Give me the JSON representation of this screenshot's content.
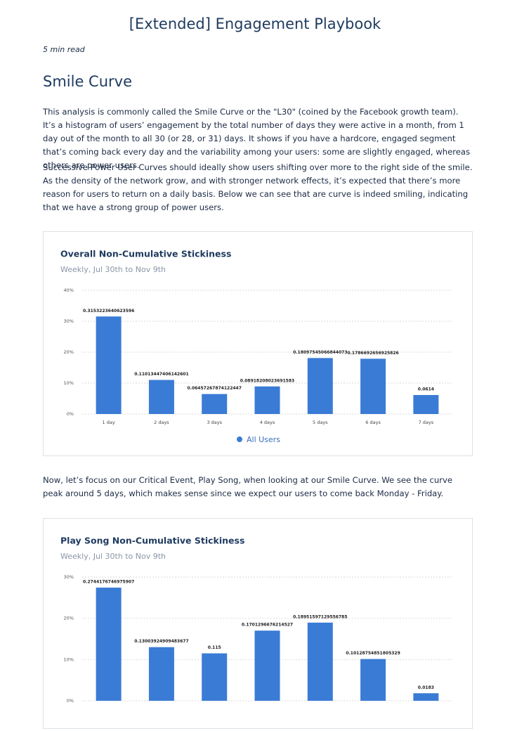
{
  "header": {
    "title": "[Extended] Engagement Playbook",
    "read_time": "5 min read"
  },
  "section": {
    "heading": "Smile Curve",
    "paragraphs": [
      "This analysis is commonly called the Smile Curve or the \"L30\" (coined by the Facebook growth team). It’s a histogram of users’ engagement by the total number of days they were active in a month, from 1 day out of the month to all 30 (or 28, or 31) days. It shows if you have a hardcore, engaged segment that’s coming back every day and the variability among your users: some are slightly engaged, whereas others are power users.",
      "Successive Power User Curves should ideally show users shifting over more to the right side of the smile. As the density of the network grow, and with stronger network effects, it’s expected that there’s more reason for users to return on a daily basis. Below we can see that are curve is indeed smiling, indicating that we have a strong group of power users."
    ],
    "bridge": "Now, let’s focus on our Critical Event, Play Song, when looking at our Smile Curve. We see the curve peak around 5 days, which makes sense since we expect our users to come back Monday - Friday."
  },
  "chart_data": [
    {
      "type": "bar",
      "title": "Overall Non-Cumulative Stickiness",
      "subtitle": "Weekly, Jul 30th to Nov 9th",
      "categories": [
        "1 day",
        "2 days",
        "3 days",
        "4 days",
        "5 days",
        "6 days",
        "7 days"
      ],
      "series": [
        {
          "name": "All Users",
          "color": "#3a7bd5",
          "values": [
            0.3153223640623596,
            0.11013447406142601,
            0.06457267874122447,
            0.08918208023691583,
            0.18097545066844073,
            0.1786692656925826,
            0.0614
          ]
        }
      ],
      "ylim": [
        0,
        0.4
      ],
      "yticks": [
        {
          "value": 0,
          "label": "0%"
        },
        {
          "value": 0.1,
          "label": "10%"
        },
        {
          "value": 0.2,
          "label": "20%"
        },
        {
          "value": 0.3,
          "label": "30%"
        },
        {
          "value": 0.4,
          "label": "40%"
        }
      ],
      "grid": true
    },
    {
      "type": "bar",
      "title": "Play Song Non-Cumulative Stickiness",
      "subtitle": "Weekly, Jul 30th to Nov 9th",
      "values": [
        0.2744176746975907,
        0.13003924909483677,
        0.115,
        0.1701296676214527,
        0.18951597129556785,
        0.10128754851805329,
        0.0183
      ],
      "color": "#3a7bd5",
      "ylim": [
        0,
        0.3
      ],
      "yticks": [
        {
          "value": 0,
          "label": "0%"
        },
        {
          "value": 0.1,
          "label": "10%"
        },
        {
          "value": 0.2,
          "label": "20%"
        },
        {
          "value": 0.3,
          "label": "30%"
        }
      ],
      "grid": true
    }
  ]
}
